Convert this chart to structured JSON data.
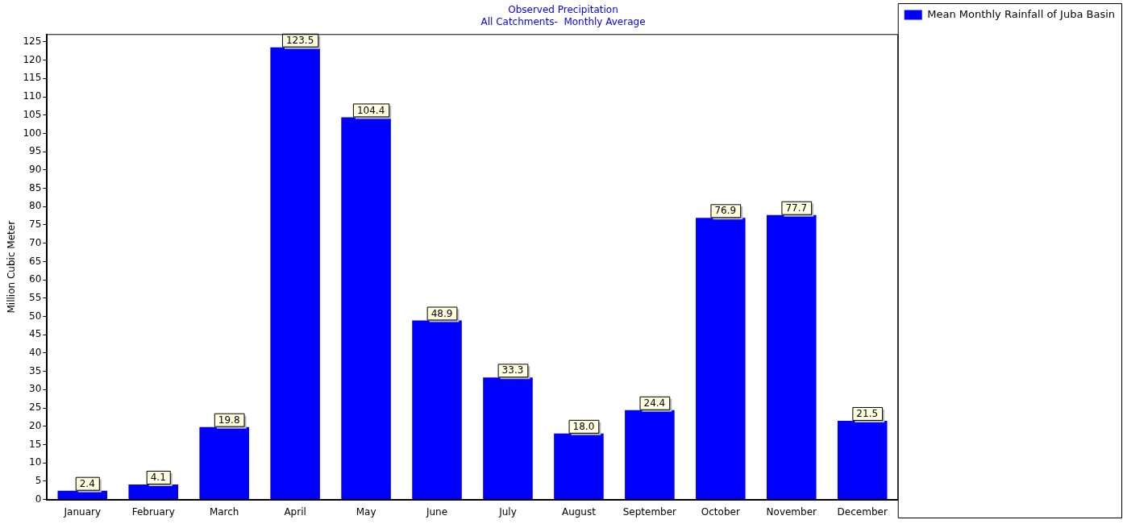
{
  "chart_data": {
    "type": "bar",
    "title": "Observed Precipitation",
    "subtitle": "All Catchments-  Monthly Average",
    "ylabel": "Million Cubic Meter",
    "categories": [
      "January",
      "February",
      "March",
      "April",
      "May",
      "June",
      "July",
      "August",
      "September",
      "October",
      "November",
      "December"
    ],
    "series": [
      {
        "name": "Mean Monthly Rainfall of Juba Basin",
        "color": "#0000ff",
        "values": [
          2.4,
          4.1,
          19.8,
          123.5,
          104.4,
          48.9,
          33.3,
          18.0,
          24.4,
          76.9,
          77.7,
          21.5
        ]
      }
    ],
    "value_labels": [
      "2.4",
      "4.1",
      "19.8",
      "123.5",
      "104.4",
      "48.9",
      "33.3",
      "18.0",
      "24.4",
      "76.9",
      "77.7",
      "21.5"
    ],
    "ylim": [
      0,
      127
    ],
    "yticks": [
      0,
      5,
      10,
      15,
      20,
      25,
      30,
      35,
      40,
      45,
      50,
      55,
      60,
      65,
      70,
      75,
      80,
      85,
      90,
      95,
      100,
      105,
      110,
      115,
      120,
      125
    ],
    "grid": false,
    "legend": "top right"
  }
}
